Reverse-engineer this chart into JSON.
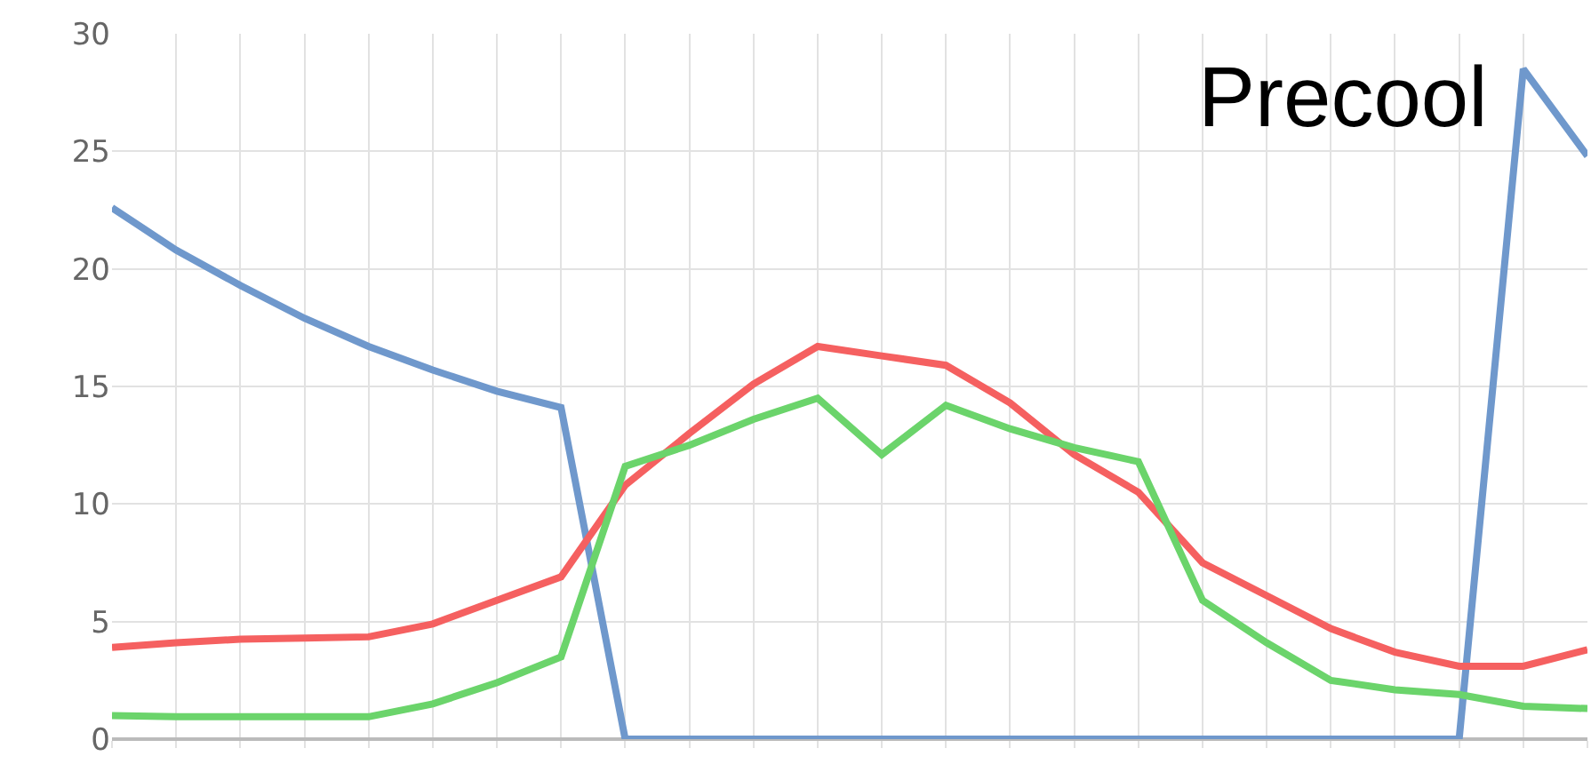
{
  "chart_data": {
    "type": "line",
    "categories": [
      null,
      null,
      null,
      null,
      null,
      null,
      null,
      null,
      null,
      null,
      null,
      null,
      null,
      null,
      null,
      null,
      null,
      null,
      null,
      null,
      null,
      null,
      null,
      null
    ],
    "series": [
      {
        "color": "#6f98cc",
        "values": [
          22.6,
          20.8,
          19.3,
          17.9,
          16.7,
          15.7,
          14.8,
          14.1,
          0,
          0,
          0,
          0,
          0,
          0,
          0,
          0,
          0,
          0,
          0,
          0,
          0,
          0,
          28.5,
          24.8
        ]
      },
      {
        "color": "#f56060",
        "values": [
          3.9,
          4.1,
          4.25,
          4.3,
          4.35,
          4.9,
          5.9,
          6.9,
          10.8,
          13.0,
          15.1,
          16.7,
          16.3,
          15.9,
          14.3,
          12.1,
          10.5,
          7.5,
          6.1,
          4.7,
          3.7,
          3.1,
          3.1,
          3.8
        ]
      },
      {
        "color": "#6bd46b",
        "values": [
          1.0,
          0.95,
          0.95,
          0.95,
          0.95,
          1.5,
          2.4,
          3.5,
          11.6,
          12.5,
          13.6,
          14.5,
          12.1,
          14.2,
          13.2,
          12.4,
          11.8,
          5.9,
          4.1,
          2.5,
          2.1,
          1.9,
          1.4,
          1.3
        ]
      }
    ],
    "ylim": [
      0,
      30
    ],
    "yticks": [
      0,
      5,
      10,
      15,
      20,
      25,
      30
    ],
    "grid": true,
    "tick_labels": "y",
    "line_style": "solid",
    "annotations": [
      "Precool"
    ]
  }
}
